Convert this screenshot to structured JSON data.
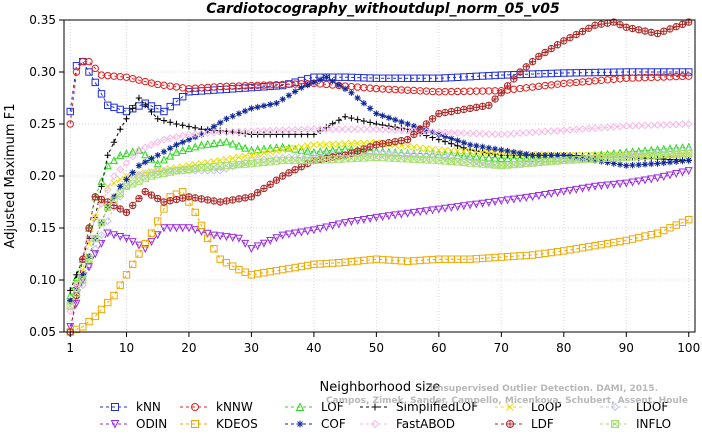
{
  "chart_data": {
    "type": "line",
    "title": "Cardiotocography_withoutdupl_norm_05_v05",
    "xlabel": "Neighborhood size",
    "ylabel": "Adjusted Maximum F1",
    "xlim": [
      0,
      101
    ],
    "ylim": [
      0.05,
      0.35
    ],
    "xticks": [
      1,
      10,
      20,
      30,
      40,
      50,
      60,
      70,
      80,
      90,
      100
    ],
    "yticks": [
      0.05,
      0.1,
      0.15,
      0.2,
      0.25,
      0.3,
      0.35
    ],
    "ytick_labels": [
      "0.05",
      "0.10",
      "0.15",
      "0.20",
      "0.25",
      "0.30",
      "0.35"
    ],
    "grid": true,
    "legend_position": "bottom",
    "watermark": [
      "Unsupervised Outlier Detection. DAMI, 2015.",
      "Campos, Zimek, Sander, Campello, Micenkova, Schubert, Assent, Houle"
    ],
    "series": [
      {
        "name": "kNN",
        "color": "#1f2fd8",
        "marker": "square",
        "points": [
          [
            1,
            0.262
          ],
          [
            2,
            0.306
          ],
          [
            3,
            0.31
          ],
          [
            5,
            0.29
          ],
          [
            7,
            0.268
          ],
          [
            10,
            0.262
          ],
          [
            13,
            0.27
          ],
          [
            16,
            0.262
          ],
          [
            20,
            0.281
          ],
          [
            25,
            0.283
          ],
          [
            30,
            0.285
          ],
          [
            35,
            0.287
          ],
          [
            40,
            0.295
          ],
          [
            45,
            0.295
          ],
          [
            50,
            0.294
          ],
          [
            60,
            0.294
          ],
          [
            70,
            0.297
          ],
          [
            80,
            0.299
          ],
          [
            90,
            0.3
          ],
          [
            100,
            0.3
          ]
        ]
      },
      {
        "name": "kNNW",
        "color": "#e02020",
        "marker": "circle",
        "points": [
          [
            1,
            0.25
          ],
          [
            2,
            0.3
          ],
          [
            3,
            0.31
          ],
          [
            4,
            0.31
          ],
          [
            6,
            0.297
          ],
          [
            10,
            0.295
          ],
          [
            15,
            0.288
          ],
          [
            20,
            0.284
          ],
          [
            25,
            0.286
          ],
          [
            30,
            0.287
          ],
          [
            40,
            0.289
          ],
          [
            50,
            0.284
          ],
          [
            60,
            0.281
          ],
          [
            70,
            0.282
          ],
          [
            80,
            0.289
          ],
          [
            90,
            0.294
          ],
          [
            100,
            0.296
          ]
        ]
      },
      {
        "name": "LOF",
        "color": "#2ed81f",
        "marker": "triangle-up",
        "points": [
          [
            1,
            0.085
          ],
          [
            3,
            0.12
          ],
          [
            5,
            0.18
          ],
          [
            7,
            0.21
          ],
          [
            9,
            0.22
          ],
          [
            12,
            0.225
          ],
          [
            15,
            0.212
          ],
          [
            18,
            0.223
          ],
          [
            22,
            0.23
          ],
          [
            26,
            0.233
          ],
          [
            30,
            0.225
          ],
          [
            35,
            0.228
          ],
          [
            40,
            0.223
          ],
          [
            45,
            0.226
          ],
          [
            50,
            0.224
          ],
          [
            55,
            0.222
          ],
          [
            60,
            0.221
          ],
          [
            65,
            0.219
          ],
          [
            70,
            0.217
          ],
          [
            80,
            0.217
          ],
          [
            90,
            0.223
          ],
          [
            100,
            0.228
          ]
        ]
      },
      {
        "name": "SimplifiedLOF",
        "color": "#000000",
        "marker": "plus",
        "points": [
          [
            1,
            0.09
          ],
          [
            3,
            0.12
          ],
          [
            5,
            0.16
          ],
          [
            7,
            0.22
          ],
          [
            9,
            0.245
          ],
          [
            12,
            0.275
          ],
          [
            15,
            0.255
          ],
          [
            18,
            0.25
          ],
          [
            22,
            0.245
          ],
          [
            26,
            0.243
          ],
          [
            30,
            0.24
          ],
          [
            35,
            0.24
          ],
          [
            40,
            0.24
          ],
          [
            45,
            0.257
          ],
          [
            50,
            0.25
          ],
          [
            55,
            0.245
          ],
          [
            60,
            0.235
          ],
          [
            65,
            0.225
          ],
          [
            70,
            0.22
          ],
          [
            80,
            0.22
          ],
          [
            90,
            0.218
          ],
          [
            100,
            0.215
          ]
        ]
      },
      {
        "name": "LoOP",
        "color": "#e8e000",
        "marker": "x",
        "points": [
          [
            1,
            0.08
          ],
          [
            3,
            0.11
          ],
          [
            5,
            0.16
          ],
          [
            7,
            0.19
          ],
          [
            10,
            0.2
          ],
          [
            15,
            0.205
          ],
          [
            20,
            0.21
          ],
          [
            30,
            0.22
          ],
          [
            40,
            0.23
          ],
          [
            50,
            0.232
          ],
          [
            60,
            0.225
          ],
          [
            70,
            0.222
          ],
          [
            80,
            0.22
          ],
          [
            90,
            0.22
          ],
          [
            100,
            0.22
          ]
        ]
      },
      {
        "name": "LDOF",
        "color": "#c4c4f0",
        "marker": "diamond",
        "points": [
          [
            1,
            0.08
          ],
          [
            3,
            0.095
          ],
          [
            5,
            0.13
          ],
          [
            8,
            0.17
          ],
          [
            11,
            0.2
          ],
          [
            15,
            0.205
          ],
          [
            20,
            0.205
          ],
          [
            25,
            0.205
          ],
          [
            30,
            0.215
          ],
          [
            40,
            0.22
          ],
          [
            50,
            0.222
          ],
          [
            60,
            0.22
          ],
          [
            70,
            0.21
          ],
          [
            80,
            0.215
          ],
          [
            90,
            0.22
          ],
          [
            100,
            0.225
          ]
        ]
      },
      {
        "name": "ODIN",
        "color": "#9a2ce0",
        "marker": "triangle-down",
        "points": [
          [
            1,
            0.055
          ],
          [
            3,
            0.1
          ],
          [
            5,
            0.125
          ],
          [
            7,
            0.145
          ],
          [
            10,
            0.14
          ],
          [
            13,
            0.13
          ],
          [
            16,
            0.15
          ],
          [
            20,
            0.15
          ],
          [
            24,
            0.143
          ],
          [
            28,
            0.14
          ],
          [
            30,
            0.13
          ],
          [
            35,
            0.143
          ],
          [
            40,
            0.148
          ],
          [
            45,
            0.155
          ],
          [
            50,
            0.16
          ],
          [
            55,
            0.164
          ],
          [
            60,
            0.168
          ],
          [
            65,
            0.172
          ],
          [
            70,
            0.176
          ],
          [
            75,
            0.18
          ],
          [
            80,
            0.185
          ],
          [
            85,
            0.19
          ],
          [
            90,
            0.193
          ],
          [
            95,
            0.198
          ],
          [
            100,
            0.205
          ]
        ]
      },
      {
        "name": "KDEOS",
        "color": "#f0a800",
        "marker": "square",
        "points": [
          [
            1,
            0.05
          ],
          [
            3,
            0.055
          ],
          [
            5,
            0.065
          ],
          [
            8,
            0.085
          ],
          [
            11,
            0.115
          ],
          [
            14,
            0.145
          ],
          [
            17,
            0.18
          ],
          [
            19,
            0.185
          ],
          [
            21,
            0.165
          ],
          [
            23,
            0.14
          ],
          [
            25,
            0.12
          ],
          [
            28,
            0.11
          ],
          [
            30,
            0.105
          ],
          [
            35,
            0.11
          ],
          [
            40,
            0.115
          ],
          [
            45,
            0.117
          ],
          [
            50,
            0.12
          ],
          [
            55,
            0.118
          ],
          [
            60,
            0.12
          ],
          [
            65,
            0.12
          ],
          [
            70,
            0.122
          ],
          [
            75,
            0.124
          ],
          [
            80,
            0.128
          ],
          [
            85,
            0.133
          ],
          [
            90,
            0.138
          ],
          [
            95,
            0.145
          ],
          [
            100,
            0.158
          ]
        ]
      },
      {
        "name": "COF",
        "color": "#102898",
        "marker": "asterisk",
        "points": [
          [
            1,
            0.08
          ],
          [
            3,
            0.105
          ],
          [
            5,
            0.14
          ],
          [
            7,
            0.17
          ],
          [
            9,
            0.19
          ],
          [
            12,
            0.21
          ],
          [
            15,
            0.22
          ],
          [
            18,
            0.23
          ],
          [
            22,
            0.24
          ],
          [
            26,
            0.255
          ],
          [
            30,
            0.265
          ],
          [
            34,
            0.27
          ],
          [
            38,
            0.285
          ],
          [
            42,
            0.295
          ],
          [
            46,
            0.28
          ],
          [
            50,
            0.26
          ],
          [
            55,
            0.25
          ],
          [
            60,
            0.24
          ],
          [
            65,
            0.23
          ],
          [
            70,
            0.225
          ],
          [
            75,
            0.22
          ],
          [
            80,
            0.22
          ],
          [
            85,
            0.215
          ],
          [
            90,
            0.21
          ],
          [
            95,
            0.212
          ],
          [
            100,
            0.215
          ]
        ]
      },
      {
        "name": "FastABOD",
        "color": "#f8b8e8",
        "marker": "diamond",
        "points": [
          [
            1,
            0.07
          ],
          [
            3,
            0.12
          ],
          [
            5,
            0.16
          ],
          [
            8,
            0.2
          ],
          [
            12,
            0.225
          ],
          [
            16,
            0.235
          ],
          [
            20,
            0.24
          ],
          [
            25,
            0.242
          ],
          [
            30,
            0.243
          ],
          [
            35,
            0.244
          ],
          [
            40,
            0.245
          ],
          [
            45,
            0.245
          ],
          [
            50,
            0.245
          ],
          [
            60,
            0.242
          ],
          [
            70,
            0.24
          ],
          [
            80,
            0.244
          ],
          [
            90,
            0.248
          ],
          [
            100,
            0.25
          ]
        ]
      },
      {
        "name": "LDF",
        "color": "#b02828",
        "marker": "circle-plus",
        "points": [
          [
            1,
            0.05
          ],
          [
            3,
            0.12
          ],
          [
            5,
            0.18
          ],
          [
            7,
            0.175
          ],
          [
            10,
            0.165
          ],
          [
            13,
            0.185
          ],
          [
            16,
            0.175
          ],
          [
            20,
            0.18
          ],
          [
            25,
            0.175
          ],
          [
            30,
            0.18
          ],
          [
            35,
            0.2
          ],
          [
            40,
            0.215
          ],
          [
            45,
            0.22
          ],
          [
            50,
            0.23
          ],
          [
            55,
            0.235
          ],
          [
            60,
            0.26
          ],
          [
            65,
            0.265
          ],
          [
            68,
            0.268
          ],
          [
            70,
            0.28
          ],
          [
            73,
            0.3
          ],
          [
            76,
            0.315
          ],
          [
            80,
            0.33
          ],
          [
            85,
            0.345
          ],
          [
            88,
            0.348
          ],
          [
            90,
            0.343
          ],
          [
            95,
            0.337
          ],
          [
            100,
            0.348
          ]
        ]
      },
      {
        "name": "INFLO",
        "color": "#a8e070",
        "marker": "square-x",
        "points": [
          [
            1,
            0.075
          ],
          [
            3,
            0.1
          ],
          [
            5,
            0.14
          ],
          [
            7,
            0.17
          ],
          [
            10,
            0.19
          ],
          [
            14,
            0.2
          ],
          [
            18,
            0.205
          ],
          [
            22,
            0.208
          ],
          [
            26,
            0.21
          ],
          [
            30,
            0.212
          ],
          [
            35,
            0.215
          ],
          [
            40,
            0.215
          ],
          [
            50,
            0.218
          ],
          [
            60,
            0.215
          ],
          [
            70,
            0.21
          ],
          [
            80,
            0.215
          ],
          [
            90,
            0.218
          ],
          [
            100,
            0.222
          ]
        ]
      }
    ]
  }
}
